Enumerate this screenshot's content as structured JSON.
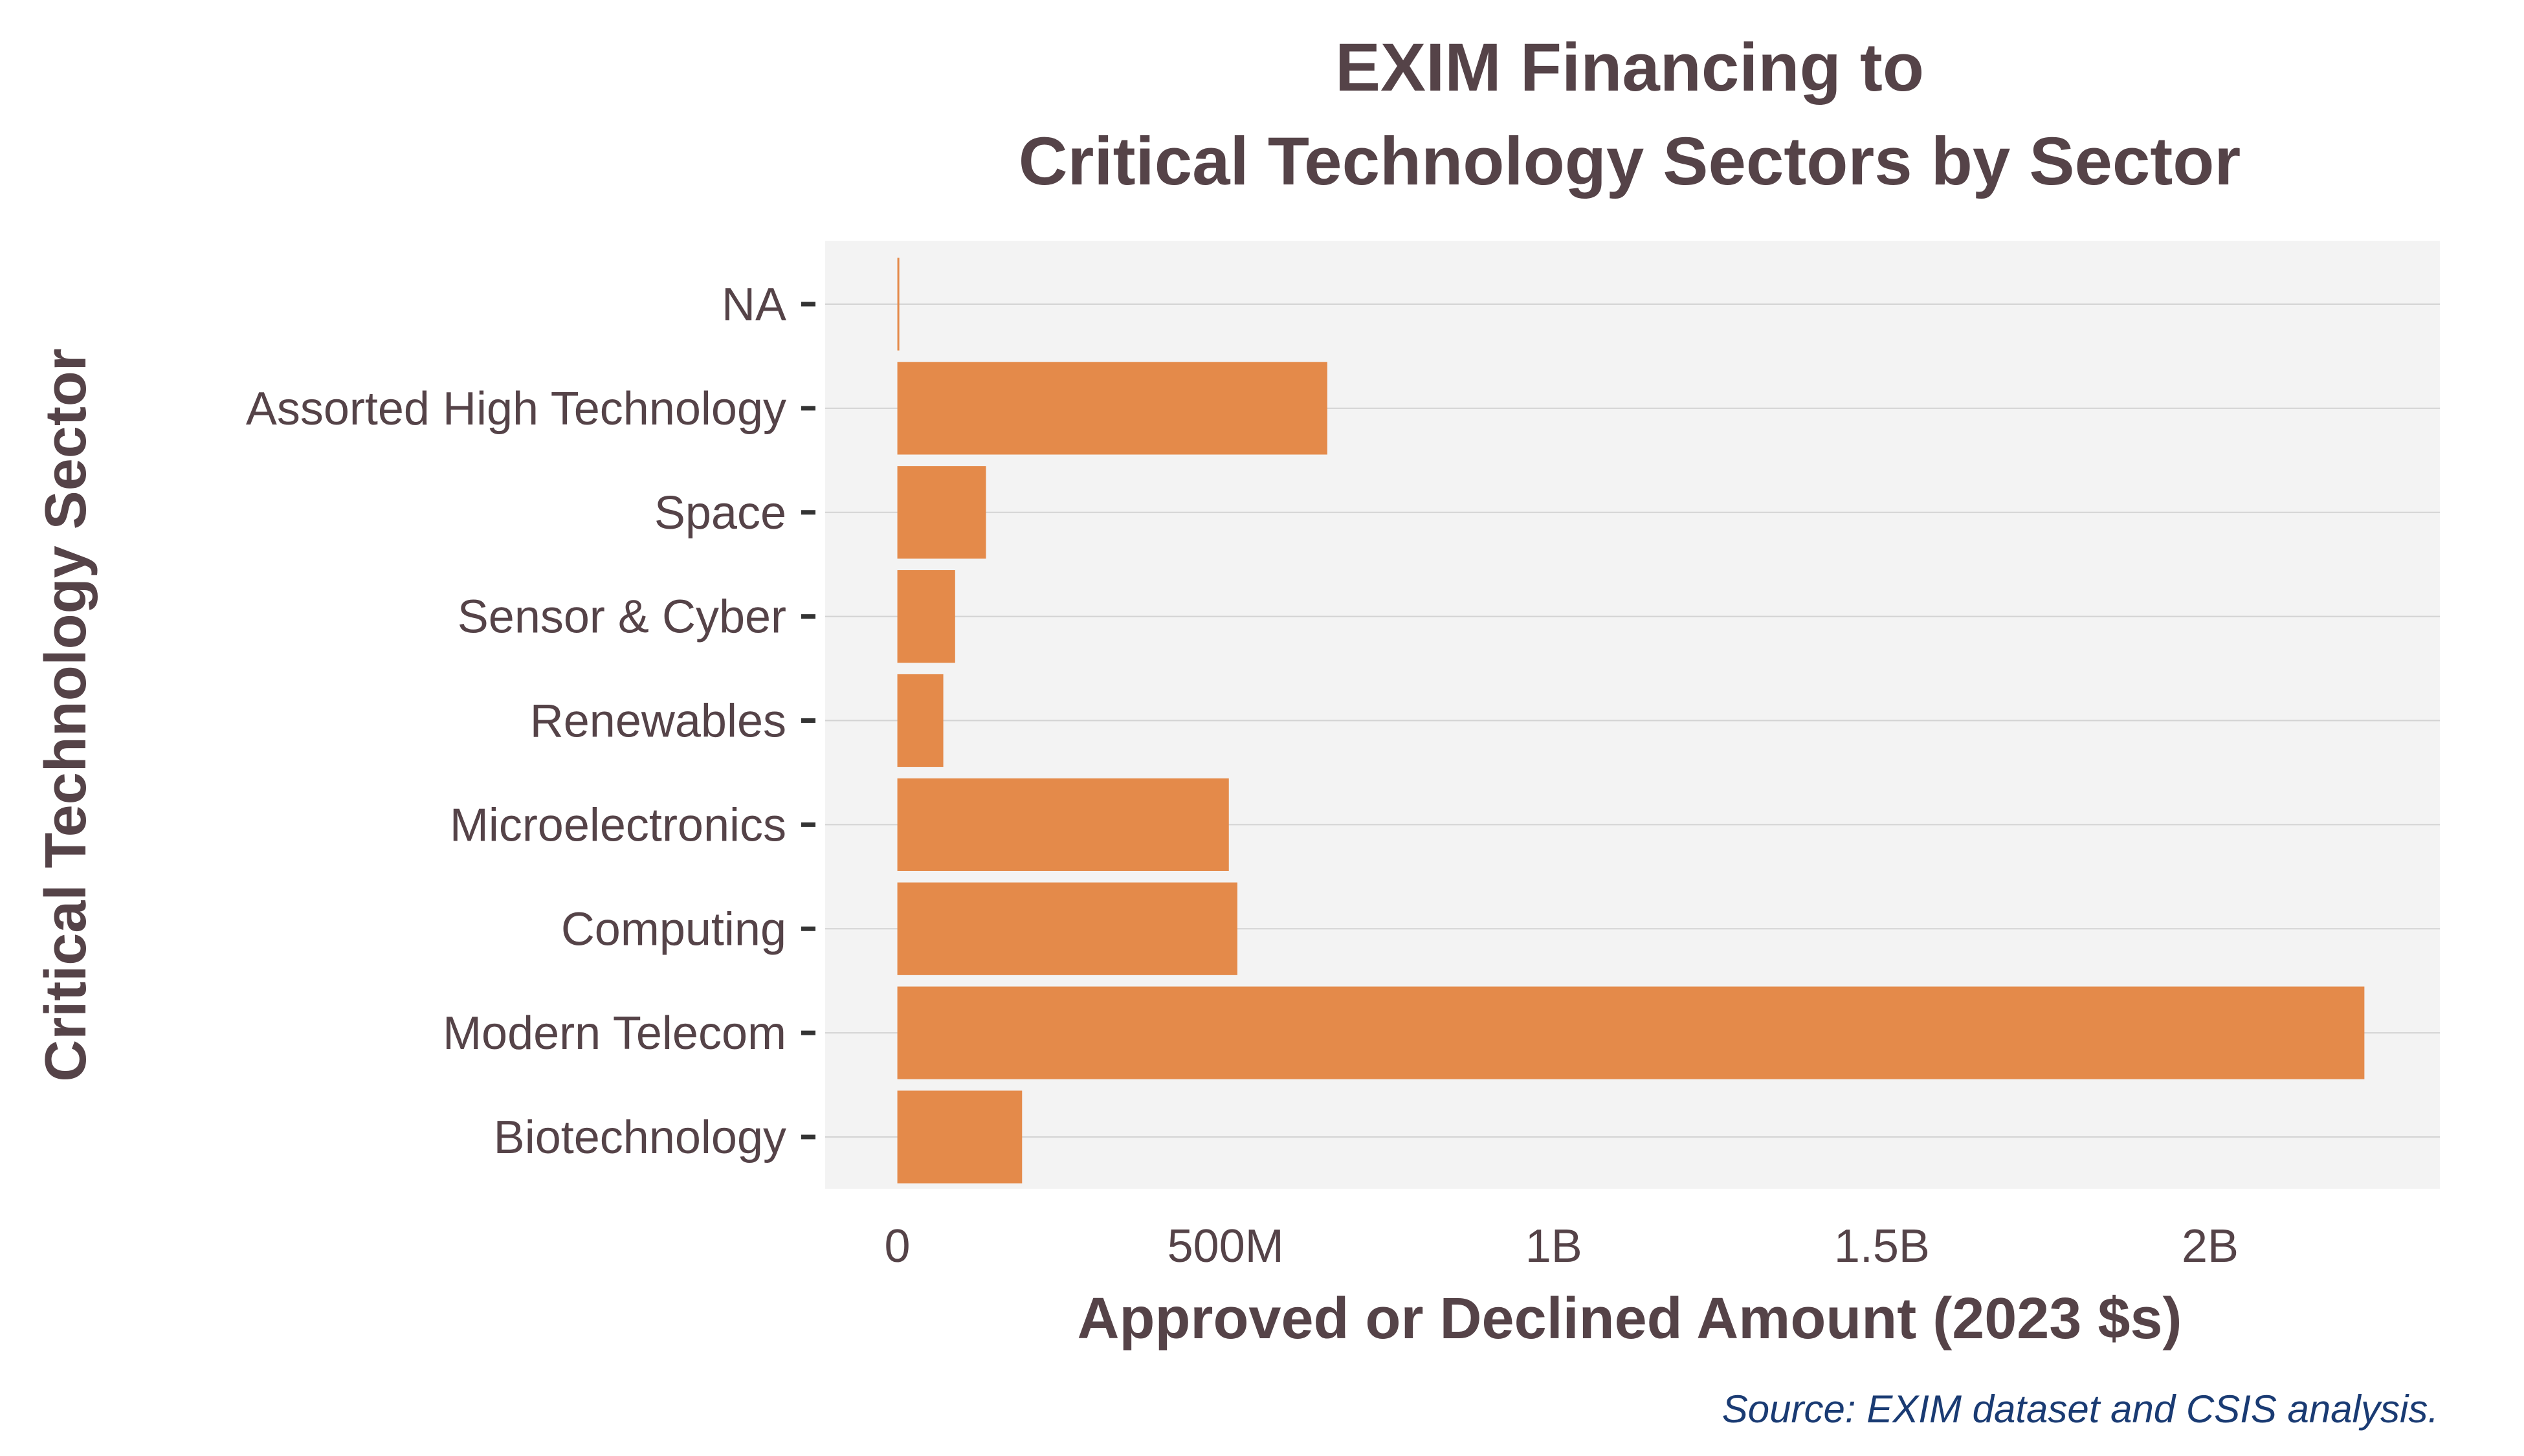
{
  "chart_data": {
    "type": "bar",
    "orientation": "horizontal",
    "title": [
      "EXIM Financing to",
      "Critical Technology Sectors by Sector"
    ],
    "xlabel": "Approved or Declined Amount (2023 $s)",
    "ylabel": "Critical Technology Sector",
    "categories": [
      "NA",
      "Assorted High Technology",
      "Space",
      "Sensor & Cyber",
      "Renewables",
      "Microelectronics",
      "Computing",
      "Modern Telecom",
      "Biotechnology"
    ],
    "values": [
      3000000,
      655000000,
      135000000,
      88000000,
      70000000,
      505000000,
      518000000,
      2235000000,
      190000000
    ],
    "xlim": [
      -110000000,
      2350000000
    ],
    "x_ticks": [
      0,
      500000000,
      1000000000,
      1500000000,
      2000000000
    ],
    "x_tick_labels": [
      "0",
      "500M",
      "1B",
      "1.5B",
      "2B"
    ],
    "grid": "horizontal",
    "legend": "none",
    "source": "Source:  EXIM dataset and CSIS analysis."
  },
  "colors": {
    "bar": "#E48A4A",
    "panel": "#F3F3F3",
    "grid": "#D3D3D3",
    "text": "#554348",
    "source": "#1A3B73",
    "tick_mark": "#333333"
  }
}
